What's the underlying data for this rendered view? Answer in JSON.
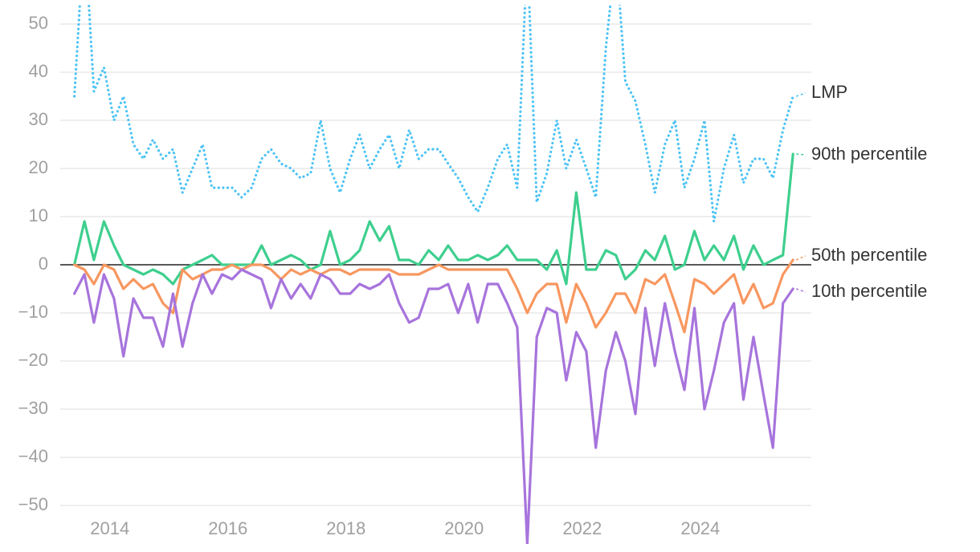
{
  "chart_data": {
    "type": "line",
    "x": [
      2013.4,
      2013.57,
      2013.73,
      2013.9,
      2014.07,
      2014.23,
      2014.4,
      2014.57,
      2014.73,
      2014.9,
      2015.07,
      2015.23,
      2015.4,
      2015.57,
      2015.73,
      2015.9,
      2016.07,
      2016.23,
      2016.4,
      2016.57,
      2016.73,
      2016.9,
      2017.07,
      2017.23,
      2017.4,
      2017.57,
      2017.73,
      2017.9,
      2018.07,
      2018.23,
      2018.4,
      2018.57,
      2018.73,
      2018.9,
      2019.07,
      2019.23,
      2019.4,
      2019.57,
      2019.73,
      2019.9,
      2020.07,
      2020.23,
      2020.4,
      2020.57,
      2020.73,
      2020.9,
      2021.07,
      2021.23,
      2021.4,
      2021.57,
      2021.73,
      2021.9,
      2022.07,
      2022.23,
      2022.4,
      2022.57,
      2022.73,
      2022.9,
      2023.07,
      2023.23,
      2023.4,
      2023.57,
      2023.73,
      2023.9,
      2024.07,
      2024.23,
      2024.4,
      2024.57,
      2024.73,
      2024.9,
      2025.07,
      2025.23,
      2025.4,
      2025.57
    ],
    "series": [
      {
        "name": "LMP",
        "color": "#4cc3f5",
        "dotted": true,
        "values": [
          35,
          70,
          36,
          41,
          30,
          35,
          25,
          22,
          26,
          22,
          24,
          15,
          20,
          25,
          16,
          16,
          16,
          14,
          16,
          22,
          24,
          21,
          20,
          18,
          19,
          30,
          20,
          15,
          22,
          27,
          20,
          24,
          27,
          20,
          28,
          22,
          24,
          24,
          21,
          18,
          14,
          11,
          16,
          22,
          25,
          16,
          65,
          13,
          19,
          30,
          20,
          26,
          20,
          14,
          45,
          65,
          38,
          34,
          25,
          15,
          25,
          30,
          16,
          22,
          30,
          9,
          20,
          27,
          17,
          22,
          22,
          18,
          28,
          35
        ]
      },
      {
        "name": "90th percentile",
        "color": "#3ecf8e",
        "values": [
          0,
          9,
          1,
          9,
          4,
          0,
          -1,
          -2,
          -1,
          -2,
          -4,
          -1,
          0,
          1,
          2,
          0,
          0,
          0,
          0,
          4,
          0,
          1,
          2,
          1,
          -1,
          0,
          7,
          0,
          1,
          3,
          9,
          5,
          8,
          1,
          1,
          0,
          3,
          1,
          4,
          1,
          1,
          2,
          1,
          2,
          4,
          1,
          1,
          1,
          -1,
          3,
          -4,
          15,
          -1,
          -1,
          3,
          2,
          -3,
          -1,
          3,
          1,
          6,
          -1,
          0,
          7,
          1,
          4,
          1,
          6,
          -1,
          4,
          0,
          1,
          2,
          23
        ]
      },
      {
        "name": "50th percentile",
        "color": "#f7975f",
        "values": [
          0,
          -1,
          -4,
          0,
          -1,
          -5,
          -3,
          -5,
          -4,
          -8,
          -10,
          -1,
          -3,
          -2,
          -1,
          -1,
          0,
          -1,
          0,
          0,
          -1,
          -3,
          -1,
          -2,
          -1,
          -2,
          -1,
          -1,
          -2,
          -1,
          -1,
          -1,
          -1,
          -2,
          -2,
          -2,
          -1,
          0,
          -1,
          -1,
          -1,
          -1,
          -1,
          -1,
          -1,
          -5,
          -10,
          -6,
          -4,
          -4,
          -12,
          -4,
          -8,
          -13,
          -10,
          -6,
          -6,
          -10,
          -3,
          -4,
          -2,
          -8,
          -14,
          -3,
          -4,
          -6,
          -4,
          -2,
          -8,
          -4,
          -9,
          -8,
          -2,
          1
        ]
      },
      {
        "name": "10th percentile",
        "color": "#a774dc",
        "values": [
          -6,
          -2,
          -12,
          -2,
          -7,
          -19,
          -7,
          -11,
          -11,
          -17,
          -6,
          -17,
          -8,
          -2,
          -6,
          -2,
          -3,
          -1,
          -2,
          -3,
          -9,
          -3,
          -7,
          -4,
          -7,
          -2,
          -3,
          -6,
          -6,
          -4,
          -5,
          -4,
          -2,
          -8,
          -12,
          -11,
          -5,
          -5,
          -4,
          -10,
          -4,
          -12,
          -4,
          -4,
          -8,
          -13,
          -58,
          -15,
          -9,
          -10,
          -24,
          -14,
          -18,
          -38,
          -22,
          -14,
          -20,
          -31,
          -9,
          -21,
          -8,
          -18,
          -26,
          -9,
          -30,
          -22,
          -12,
          -8,
          -28,
          -15,
          -27,
          -38,
          -8,
          -5
        ]
      }
    ],
    "xlim": [
      2013.16,
      2025.88
    ],
    "xticks": [
      2014,
      2016,
      2018,
      2020,
      2022,
      2024
    ],
    "ylim": [
      -58,
      54
    ],
    "yticks": [
      {
        "value": -50,
        "label": "−50"
      },
      {
        "value": -40,
        "label": "−40"
      },
      {
        "value": -30,
        "label": "−30"
      },
      {
        "value": -20,
        "label": "−20"
      },
      {
        "value": -10,
        "label": "−10"
      },
      0,
      10,
      20,
      30,
      40,
      50
    ],
    "grid": true
  }
}
